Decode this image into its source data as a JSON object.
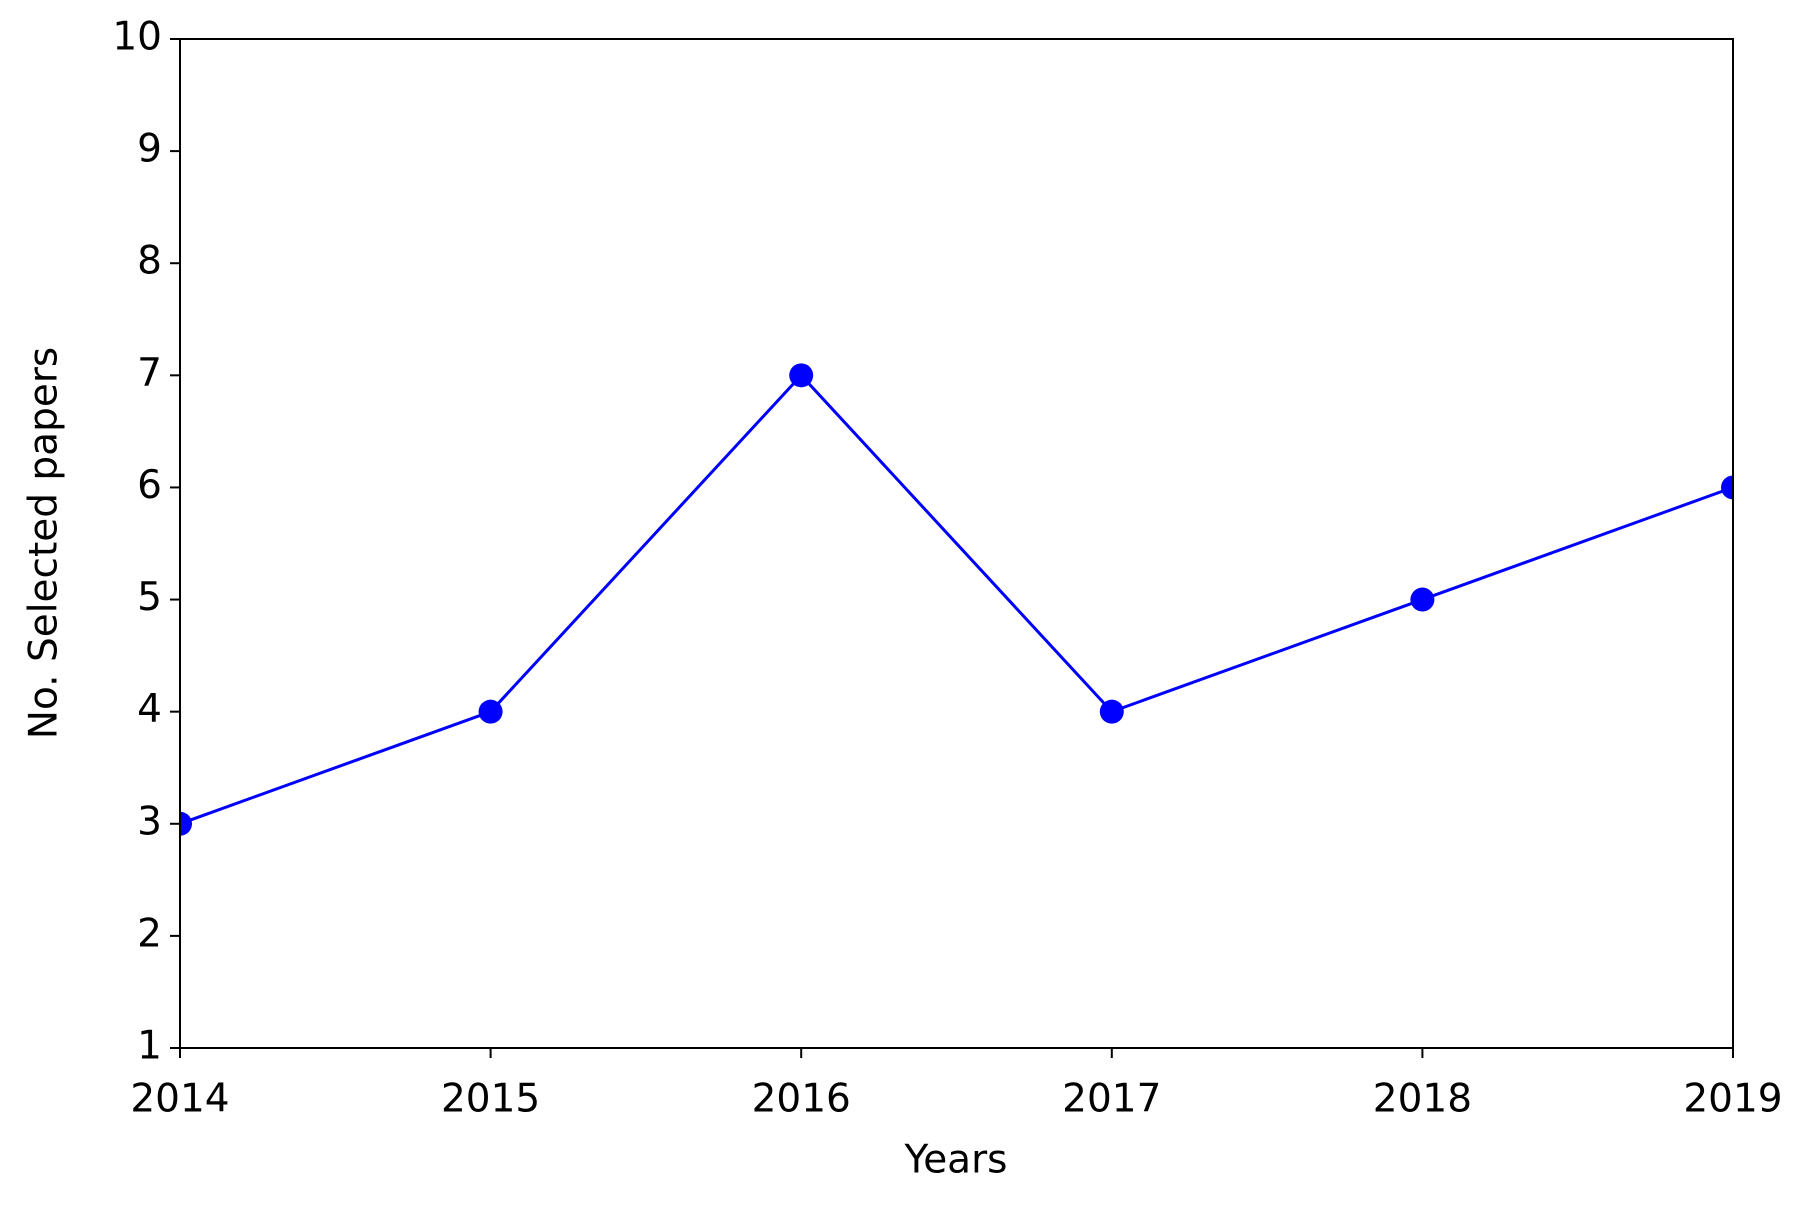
{
  "chart_data": {
    "type": "line",
    "x_label": "Years",
    "y_label": "No. Selected papers",
    "x": [
      2014,
      2015,
      2016,
      2017,
      2018,
      2019
    ],
    "series": [
      {
        "color": "#0000ff",
        "values": [
          3,
          4,
          7,
          4,
          5,
          6
        ]
      }
    ],
    "xlim": [
      2014,
      2019
    ],
    "xticks": [
      2014,
      2015,
      2016,
      2017,
      2018,
      2019
    ],
    "ylim": [
      1,
      10
    ],
    "yticks": [
      1,
      2,
      3,
      4,
      5,
      6,
      7,
      8,
      9,
      10
    ],
    "grid": false,
    "markers": true
  }
}
